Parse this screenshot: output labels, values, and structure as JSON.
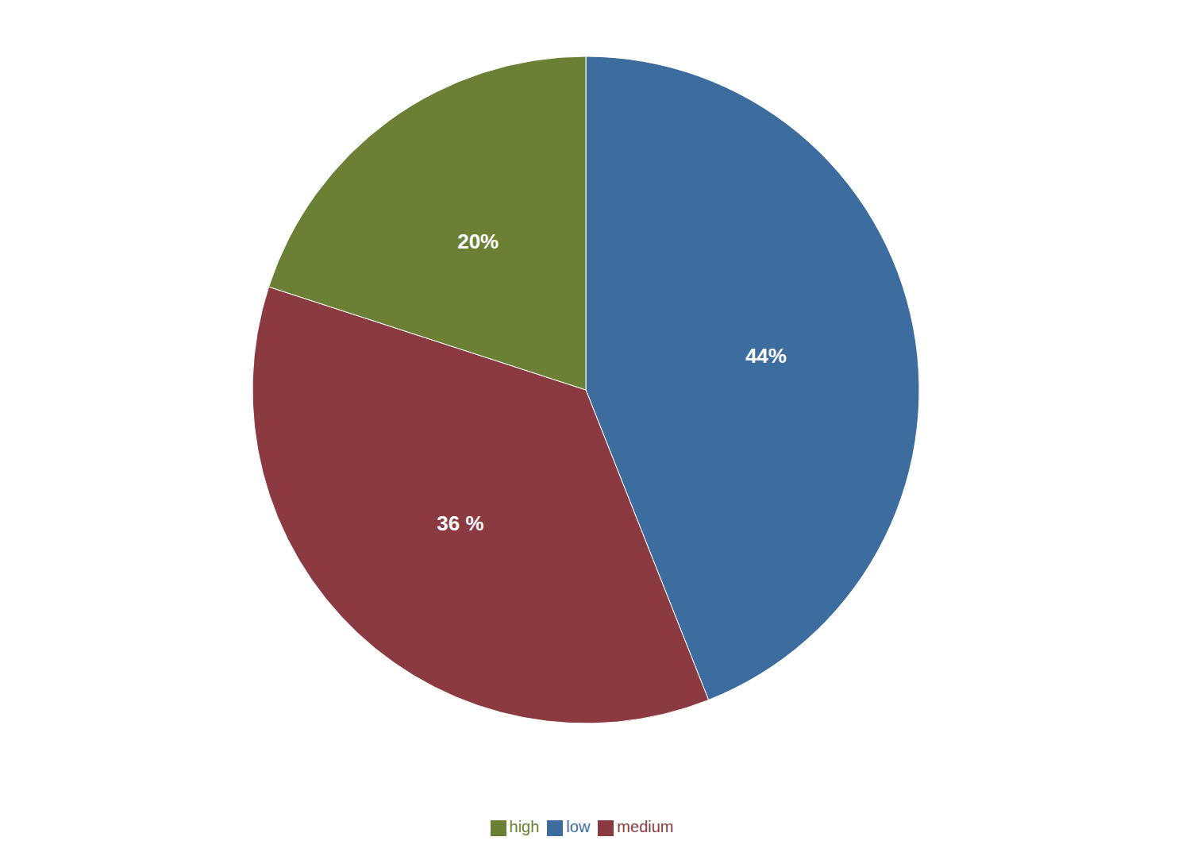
{
  "chart_data": {
    "type": "pie",
    "categories": [
      "low",
      "medium",
      "high"
    ],
    "values": [
      44,
      36,
      20
    ],
    "value_labels": [
      "44%",
      "36 %",
      "20%"
    ],
    "colors": [
      "#3d6d9e",
      "#8b3a42",
      "#6b8035"
    ],
    "data_labels": true,
    "legend": "bottom"
  }
}
